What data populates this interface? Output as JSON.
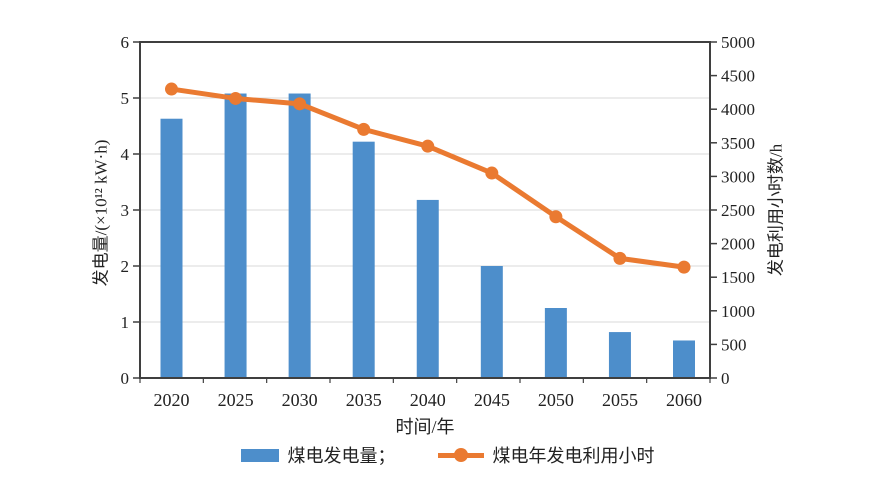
{
  "chart_data": {
    "type": "bar",
    "combo": "bar+line-dual-axis",
    "title": "",
    "categories": [
      "2020",
      "2025",
      "2030",
      "2035",
      "2040",
      "2045",
      "2050",
      "2055",
      "2060"
    ],
    "series": [
      {
        "name": "煤电发电量",
        "type": "bar",
        "axis": "left",
        "color": "#4d8ecb",
        "values": [
          4.63,
          5.08,
          5.08,
          4.22,
          3.18,
          2.0,
          1.25,
          0.82,
          0.67
        ]
      },
      {
        "name": "煤电年发电利用小时",
        "type": "line",
        "axis": "right",
        "color": "#ea7a31",
        "values": [
          4300,
          4160,
          4080,
          3700,
          3450,
          3050,
          2400,
          1780,
          1650
        ]
      }
    ],
    "x_axis": {
      "label": "时间/年"
    },
    "left_axis": {
      "label": "发电量/(×10¹² kW·h)",
      "min": 0,
      "max": 6,
      "ticks": [
        0,
        1,
        2,
        3,
        4,
        5,
        6
      ]
    },
    "right_axis": {
      "label": "发电利用小时数/h",
      "min": 0,
      "max": 5000,
      "ticks": [
        0,
        500,
        1000,
        1500,
        2000,
        2500,
        3000,
        3500,
        4000,
        4500,
        5000
      ]
    },
    "grid": true,
    "legend_position": "bottom",
    "legend": [
      {
        "label": "煤电发电量；",
        "swatch": "bar"
      },
      {
        "label": "煤电年发电利用小时",
        "swatch": "line"
      }
    ]
  },
  "colors": {
    "bar": "#4d8ecb",
    "line": "#ea7a31",
    "grid": "#d9d9d9",
    "axis": "#3f3f3f",
    "text": "#222222",
    "background": "#ffffff"
  }
}
